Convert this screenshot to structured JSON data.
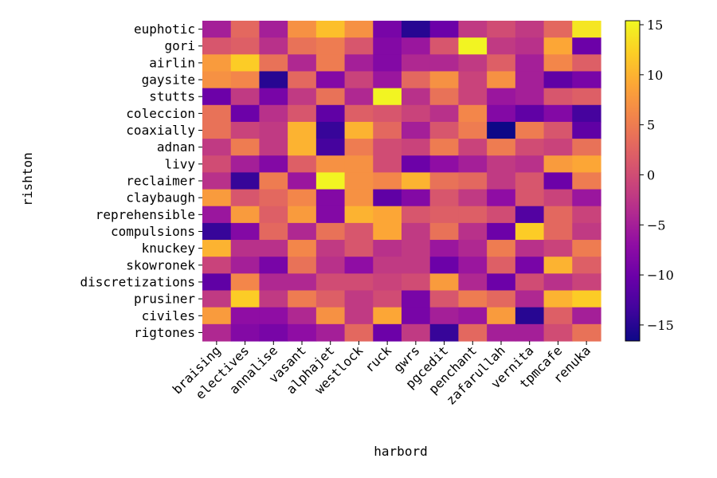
{
  "chart_data": {
    "type": "heatmap",
    "title": "",
    "xlabel": "harbord",
    "ylabel": "rishton",
    "colormap": "plasma",
    "colorbar": {
      "min": -16.6,
      "max": 15.4,
      "ticks": [
        15,
        10,
        5,
        0,
        -5,
        -10,
        -15
      ]
    },
    "x_categories": [
      "braising",
      "electives",
      "annalise",
      "vasant",
      "alphajet",
      "westlock",
      "ruck",
      "gwrs",
      "pgcedit",
      "penchant",
      "zafarullah",
      "vernita",
      "tpmcafe",
      "renuka"
    ],
    "y_categories": [
      "euphotic",
      "gori",
      "airlin",
      "gaysite",
      "stutts",
      "coleccion",
      "coaxially",
      "adnan",
      "livy",
      "reclaimer",
      "claybaugh",
      "reprehensible",
      "compulsions",
      "knuckey",
      "skowronek",
      "discretizations",
      "prusiner",
      "civiles",
      "rigtones"
    ],
    "values": [
      [
        -5,
        3,
        -5,
        7,
        11,
        7,
        -9,
        -15,
        -10,
        -2,
        0,
        -2,
        3,
        14
      ],
      [
        1,
        2,
        -3,
        4,
        5,
        1,
        -8,
        -6,
        1,
        15,
        -2,
        -3,
        9,
        -10
      ],
      [
        8,
        12,
        4,
        -4,
        5,
        -5,
        -8,
        -4,
        -4,
        -2,
        2,
        -5,
        6,
        2
      ],
      [
        7,
        6,
        -15,
        3,
        -8,
        -1,
        -6,
        3,
        7,
        -1,
        7,
        -5,
        -11,
        -9
      ],
      [
        -10,
        -2,
        -9,
        -2,
        4,
        -4,
        15,
        -3,
        4,
        -1,
        -6,
        -5,
        1,
        2
      ],
      [
        4,
        -10,
        -3,
        1,
        -11,
        2,
        1,
        -1,
        -3,
        6,
        -8,
        -11,
        -8,
        -13
      ],
      [
        4,
        -1,
        -2,
        10,
        -14,
        10,
        3,
        -5,
        1,
        5,
        -17,
        5,
        1,
        -11
      ],
      [
        -2,
        5,
        -2,
        10,
        -13,
        5,
        0,
        -1,
        5,
        -1,
        5,
        0,
        -1,
        4
      ],
      [
        0,
        -5,
        -8,
        2,
        7,
        7,
        0,
        -10,
        -7,
        -5,
        -2,
        -3,
        8,
        9
      ],
      [
        -3,
        -14,
        5,
        -6,
        15,
        7,
        6,
        10,
        4,
        3,
        -2,
        1,
        -10,
        5
      ],
      [
        8,
        1,
        3,
        6,
        -8,
        7,
        -11,
        -8,
        1,
        -2,
        -7,
        1,
        -1,
        -6
      ],
      [
        -6,
        8,
        2,
        8,
        -8,
        10,
        9,
        1,
        2,
        2,
        0,
        -12,
        3,
        -1
      ],
      [
        -14,
        -8,
        3,
        -4,
        4,
        1,
        9,
        -2,
        4,
        -3,
        -10,
        12,
        3,
        -2
      ],
      [
        10,
        -3,
        -3,
        6,
        -2,
        1,
        -3,
        -2,
        -6,
        -4,
        5,
        -3,
        -1,
        5
      ],
      [
        -1,
        -5,
        -9,
        4,
        -3,
        -7,
        -2,
        -2,
        -10,
        -6,
        2,
        -9,
        10,
        2
      ],
      [
        -11,
        6,
        -4,
        -4,
        0,
        0,
        -1,
        0,
        8,
        -4,
        -10,
        0,
        -3,
        -1
      ],
      [
        -2,
        12,
        -2,
        5,
        2,
        -2,
        0,
        -9,
        1,
        5,
        3,
        -4,
        10,
        12
      ],
      [
        8,
        -7,
        -7,
        -4,
        7,
        -2,
        9,
        -9,
        -5,
        -6,
        8,
        -15,
        2,
        -5
      ],
      [
        -4,
        -8,
        -9,
        -7,
        -5,
        3,
        -10,
        -2,
        -14,
        3,
        -5,
        -5,
        0,
        4
      ]
    ]
  }
}
